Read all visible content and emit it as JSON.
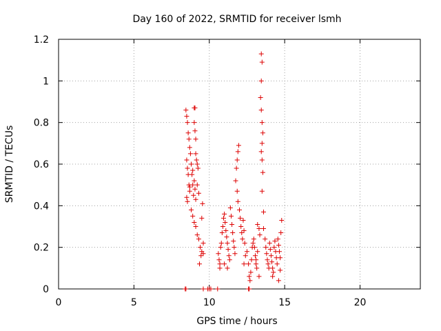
{
  "chart_data": {
    "type": "scatter",
    "title": "Day 160 of 2022, SRMTID for receiver lsmh",
    "xlabel": "GPS time / hours",
    "ylabel": "SRMTID / TECUs",
    "xlim": [
      0,
      24
    ],
    "ylim": [
      0,
      1.2
    ],
    "x_ticks": [
      0,
      5,
      10,
      15,
      20
    ],
    "x_tick_labels": [
      "0",
      "5",
      "10",
      "15",
      "20"
    ],
    "y_ticks": [
      0,
      0.2,
      0.4,
      0.6,
      0.8,
      1.0,
      1.2
    ],
    "y_tick_labels": [
      "0",
      "0.2",
      "0.4",
      "0.6",
      "0.8",
      "1",
      "1.2"
    ],
    "grid": true,
    "marker": "plus",
    "color": "#dd0000",
    "points": [
      [
        8.45,
        0.86
      ],
      [
        8.5,
        0.83
      ],
      [
        8.55,
        0.8
      ],
      [
        8.6,
        0.75
      ],
      [
        8.65,
        0.72
      ],
      [
        8.7,
        0.68
      ],
      [
        8.5,
        0.62
      ],
      [
        8.55,
        0.58
      ],
      [
        8.6,
        0.55
      ],
      [
        8.65,
        0.5
      ],
      [
        8.7,
        0.47
      ],
      [
        8.5,
        0.44
      ],
      [
        8.55,
        0.42
      ],
      [
        8.75,
        0.65
      ],
      [
        8.8,
        0.6
      ],
      [
        8.85,
        0.55
      ],
      [
        8.9,
        0.5
      ],
      [
        8.95,
        0.45
      ],
      [
        9.0,
        0.87
      ],
      [
        9.05,
        0.87
      ],
      [
        9.0,
        0.8
      ],
      [
        9.05,
        0.76
      ],
      [
        9.1,
        0.72
      ],
      [
        9.1,
        0.65
      ],
      [
        9.15,
        0.62
      ],
      [
        9.2,
        0.6
      ],
      [
        9.25,
        0.58
      ],
      [
        9.0,
        0.52
      ],
      [
        9.05,
        0.48
      ],
      [
        9.1,
        0.43
      ],
      [
        8.8,
        0.38
      ],
      [
        8.9,
        0.35
      ],
      [
        9.0,
        0.32
      ],
      [
        9.1,
        0.3
      ],
      [
        9.2,
        0.26
      ],
      [
        9.3,
        0.24
      ],
      [
        9.4,
        0.2
      ],
      [
        9.5,
        0.18
      ],
      [
        9.45,
        0.16
      ],
      [
        9.35,
        0.12
      ],
      [
        9.55,
        0.41
      ],
      [
        9.5,
        0.34
      ],
      [
        9.6,
        0.22
      ],
      [
        9.6,
        0.17
      ],
      [
        8.7,
        0.49
      ],
      [
        8.9,
        0.57
      ],
      [
        9.2,
        0.5
      ],
      [
        9.3,
        0.46
      ],
      [
        10.6,
        0.17
      ],
      [
        10.65,
        0.14
      ],
      [
        10.7,
        0.12
      ],
      [
        10.75,
        0.2
      ],
      [
        10.8,
        0.22
      ],
      [
        10.85,
        0.27
      ],
      [
        10.9,
        0.3
      ],
      [
        10.95,
        0.34
      ],
      [
        11.0,
        0.36
      ],
      [
        11.05,
        0.32
      ],
      [
        11.1,
        0.28
      ],
      [
        11.15,
        0.25
      ],
      [
        11.2,
        0.22
      ],
      [
        11.25,
        0.19
      ],
      [
        11.3,
        0.16
      ],
      [
        11.35,
        0.14
      ],
      [
        11.4,
        0.39
      ],
      [
        11.45,
        0.35
      ],
      [
        11.5,
        0.31
      ],
      [
        11.55,
        0.27
      ],
      [
        11.6,
        0.23
      ],
      [
        11.65,
        0.2
      ],
      [
        11.7,
        0.17
      ],
      [
        11.75,
        0.52
      ],
      [
        11.8,
        0.58
      ],
      [
        11.85,
        0.62
      ],
      [
        11.9,
        0.66
      ],
      [
        11.95,
        0.69
      ],
      [
        11.85,
        0.47
      ],
      [
        11.9,
        0.42
      ],
      [
        12.0,
        0.38
      ],
      [
        12.05,
        0.34
      ],
      [
        12.1,
        0.3
      ],
      [
        12.15,
        0.27
      ],
      [
        12.2,
        0.24
      ],
      [
        12.25,
        0.33
      ],
      [
        12.3,
        0.28
      ],
      [
        12.35,
        0.22
      ],
      [
        11.0,
        0.12
      ],
      [
        11.2,
        0.1
      ],
      [
        10.7,
        0.1
      ],
      [
        12.5,
        0.18
      ],
      [
        12.6,
        0.12
      ],
      [
        12.65,
        0.06
      ],
      [
        12.7,
        0.04
      ],
      [
        12.75,
        0.08
      ],
      [
        12.8,
        0.14
      ],
      [
        12.85,
        0.2
      ],
      [
        12.9,
        0.22
      ],
      [
        12.95,
        0.24
      ],
      [
        13.0,
        0.2
      ],
      [
        13.05,
        0.16
      ],
      [
        13.1,
        0.12
      ],
      [
        13.15,
        0.1
      ],
      [
        13.2,
        0.31
      ],
      [
        13.3,
        0.29
      ],
      [
        13.35,
        0.26
      ],
      [
        13.45,
        1.13
      ],
      [
        13.5,
        1.09
      ],
      [
        13.45,
        1.0
      ],
      [
        13.4,
        0.92
      ],
      [
        13.45,
        0.86
      ],
      [
        13.5,
        0.8
      ],
      [
        13.55,
        0.75
      ],
      [
        13.5,
        0.7
      ],
      [
        13.45,
        0.66
      ],
      [
        13.5,
        0.62
      ],
      [
        13.55,
        0.56
      ],
      [
        13.5,
        0.47
      ],
      [
        13.6,
        0.37
      ],
      [
        13.6,
        0.29
      ],
      [
        13.7,
        0.24
      ],
      [
        13.75,
        0.2
      ],
      [
        13.8,
        0.17
      ],
      [
        13.85,
        0.14
      ],
      [
        13.9,
        0.12
      ],
      [
        13.95,
        0.1
      ],
      [
        14.0,
        0.22
      ],
      [
        14.05,
        0.19
      ],
      [
        14.1,
        0.16
      ],
      [
        14.15,
        0.13
      ],
      [
        14.2,
        0.1
      ],
      [
        14.25,
        0.08
      ],
      [
        14.3,
        0.2
      ],
      [
        14.35,
        0.23
      ],
      [
        14.4,
        0.18
      ],
      [
        14.45,
        0.15
      ],
      [
        14.5,
        0.12
      ],
      [
        14.55,
        0.24
      ],
      [
        14.6,
        0.21
      ],
      [
        14.65,
        0.18
      ],
      [
        14.7,
        0.15
      ],
      [
        14.75,
        0.27
      ],
      [
        14.8,
        0.33
      ],
      [
        14.6,
        0.04
      ],
      [
        14.7,
        0.09
      ],
      [
        14.2,
        0.06
      ],
      [
        13.3,
        0.06
      ],
      [
        12.3,
        0.12
      ],
      [
        12.4,
        0.16
      ],
      [
        13.1,
        0.14
      ],
      [
        13.2,
        0.18
      ],
      [
        8.4,
        0.0
      ],
      [
        8.45,
        0.0
      ],
      [
        9.6,
        0.0
      ],
      [
        9.9,
        0.0
      ],
      [
        10.0,
        0.0
      ],
      [
        10.1,
        0.0
      ],
      [
        10.55,
        0.0
      ],
      [
        12.6,
        0.0
      ],
      [
        12.65,
        0.0
      ]
    ]
  }
}
